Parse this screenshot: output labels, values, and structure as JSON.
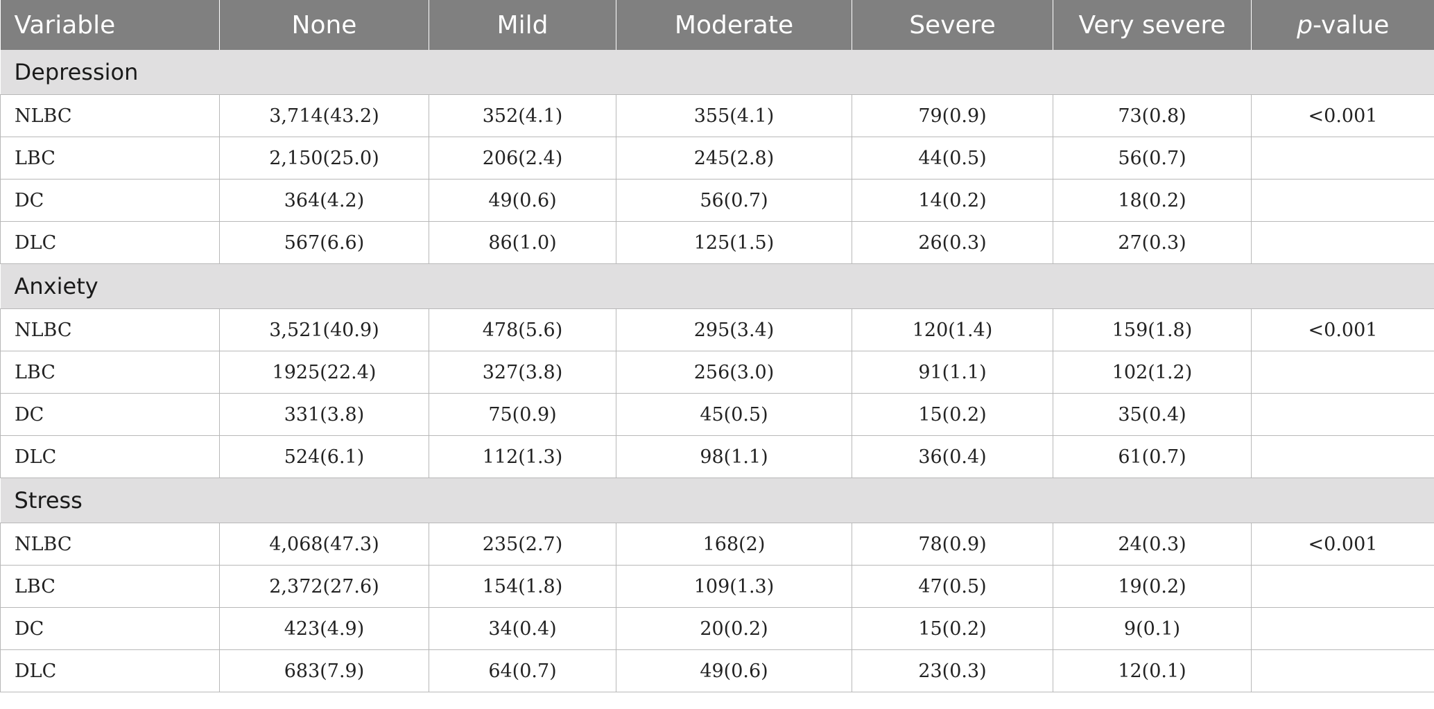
{
  "table": {
    "header": {
      "variable": "Variable",
      "none": "None",
      "mild": "Mild",
      "moderate": "Moderate",
      "severe": "Severe",
      "very_severe": "Very severe",
      "p_value_prefix": "p",
      "p_value_suffix": "-value"
    },
    "sections": [
      {
        "title": "Depression",
        "rows": [
          {
            "variable": "NLBC",
            "none": "3,714(43.2)",
            "mild": "352(4.1)",
            "moderate": "355(4.1)",
            "severe": "79(0.9)",
            "very_severe": "73(0.8)",
            "p_value": "<0.001"
          },
          {
            "variable": "LBC",
            "none": "2,150(25.0)",
            "mild": "206(2.4)",
            "moderate": "245(2.8)",
            "severe": "44(0.5)",
            "very_severe": "56(0.7)",
            "p_value": ""
          },
          {
            "variable": "DC",
            "none": "364(4.2)",
            "mild": "49(0.6)",
            "moderate": "56(0.7)",
            "severe": "14(0.2)",
            "very_severe": "18(0.2)",
            "p_value": ""
          },
          {
            "variable": "DLC",
            "none": "567(6.6)",
            "mild": "86(1.0)",
            "moderate": "125(1.5)",
            "severe": "26(0.3)",
            "very_severe": "27(0.3)",
            "p_value": ""
          }
        ]
      },
      {
        "title": "Anxiety",
        "rows": [
          {
            "variable": "NLBC",
            "none": "3,521(40.9)",
            "mild": "478(5.6)",
            "moderate": "295(3.4)",
            "severe": "120(1.4)",
            "very_severe": "159(1.8)",
            "p_value": "<0.001"
          },
          {
            "variable": "LBC",
            "none": "1925(22.4)",
            "mild": "327(3.8)",
            "moderate": "256(3.0)",
            "severe": "91(1.1)",
            "very_severe": "102(1.2)",
            "p_value": ""
          },
          {
            "variable": "DC",
            "none": "331(3.8)",
            "mild": "75(0.9)",
            "moderate": "45(0.5)",
            "severe": "15(0.2)",
            "very_severe": "35(0.4)",
            "p_value": ""
          },
          {
            "variable": "DLC",
            "none": "524(6.1)",
            "mild": "112(1.3)",
            "moderate": "98(1.1)",
            "severe": "36(0.4)",
            "very_severe": "61(0.7)",
            "p_value": ""
          }
        ]
      },
      {
        "title": "Stress",
        "rows": [
          {
            "variable": "NLBC",
            "none": "4,068(47.3)",
            "mild": "235(2.7)",
            "moderate": "168(2)",
            "severe": "78(0.9)",
            "very_severe": "24(0.3)",
            "p_value": "<0.001"
          },
          {
            "variable": "LBC",
            "none": "2,372(27.6)",
            "mild": "154(1.8)",
            "moderate": "109(1.3)",
            "severe": "47(0.5)",
            "very_severe": "19(0.2)",
            "p_value": ""
          },
          {
            "variable": "DC",
            "none": "423(4.9)",
            "mild": "34(0.4)",
            "moderate": "20(0.2)",
            "severe": "15(0.2)",
            "very_severe": "9(0.1)",
            "p_value": ""
          },
          {
            "variable": "DLC",
            "none": "683(7.9)",
            "mild": "64(0.7)",
            "moderate": "49(0.6)",
            "severe": "23(0.3)",
            "very_severe": "12(0.1)",
            "p_value": ""
          }
        ]
      }
    ]
  }
}
